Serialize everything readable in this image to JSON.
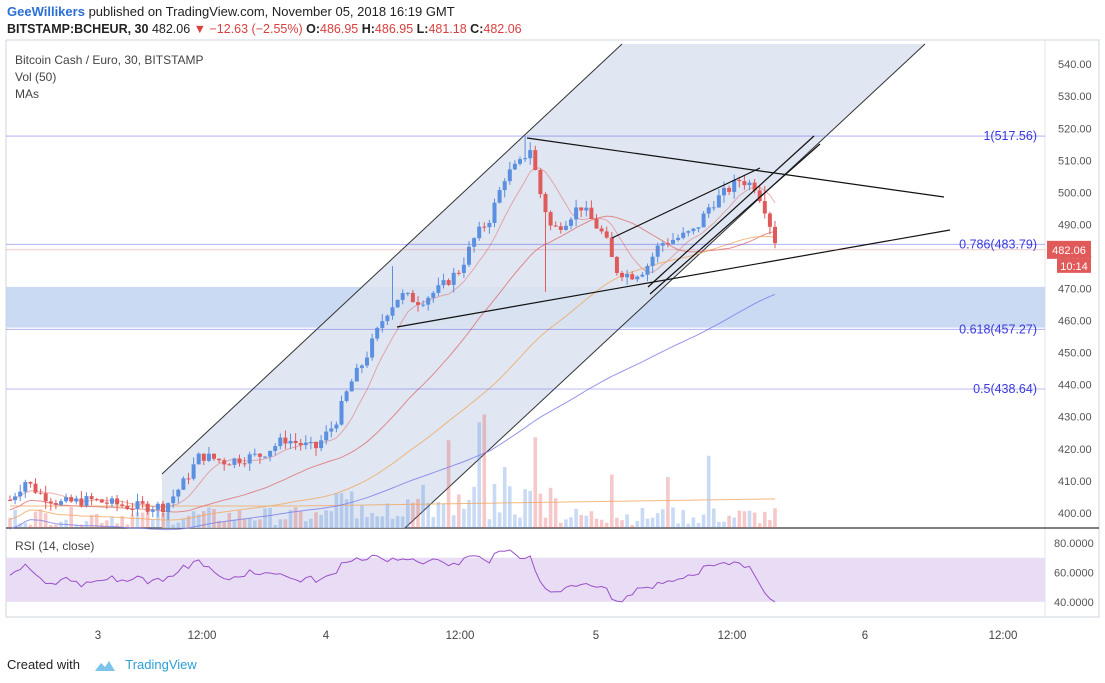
{
  "header": {
    "author": "GeeWillikers",
    "published": "published on TradingView.com, November 05, 2018 16:19 GMT",
    "symbol": "BITSTAMP:BCHEUR, 30",
    "last": "482.06",
    "change": "▼ −12.63 (−2.55%)",
    "o_label": "O:",
    "o": "486.95",
    "h_label": "H:",
    "h": "486.95",
    "l_label": "L:",
    "l": "481.18",
    "c_label": "C:",
    "c": "482.06"
  },
  "legend": {
    "title": "Bitcoin Cash / Euro, 30, BITSTAMP",
    "vol": "Vol (50)",
    "mas": "MAs"
  },
  "rsi": {
    "label": "RSI (14, close)",
    "ticks": [
      "80.0000",
      "60.0000",
      "40.0000"
    ]
  },
  "price_axis": {
    "ticks": [
      540,
      530,
      520,
      510,
      500,
      490,
      480,
      470,
      460,
      450,
      440,
      430,
      420,
      410,
      400
    ]
  },
  "time_axis": {
    "labels": [
      "3",
      "12:00",
      "4",
      "12:00",
      "5",
      "12:00",
      "6",
      "12:00"
    ]
  },
  "last_price_badge": {
    "value": "482.06",
    "countdown": "10:14",
    "color": "#e05a5a"
  },
  "fib_levels": [
    {
      "label": "1(517.56)",
      "price": 517.56
    },
    {
      "label": "0.786(483.79)",
      "price": 483.79
    },
    {
      "label": "0.618(457.27)",
      "price": 457.27
    },
    {
      "label": "0.5(438.64)",
      "price": 438.64
    }
  ],
  "colors": {
    "up": "#5b8fe0",
    "down": "#e05a5a",
    "channel": "#dbe3f0",
    "zone": "#b9cdef",
    "rsi_band": "#e6d9f3",
    "rsi_line": "#9b4fc8",
    "fib": "#3a3adf",
    "ma_red": "#e07070",
    "ma_orange": "#f0a860",
    "ma_purple": "#7a7ae8"
  },
  "chart_data": {
    "type": "candlestick",
    "title": "Bitcoin Cash / Euro, 30, BITSTAMP",
    "ylim": [
      395,
      545
    ],
    "price_samples": [
      {
        "t": "3",
        "price": 402
      },
      {
        "t": "3 12:00",
        "price": 415
      },
      {
        "t": "4",
        "price": 425
      },
      {
        "t": "4 (mid)",
        "price": 462
      },
      {
        "t": "4 12:00",
        "price": 490
      },
      {
        "t": "4 (high)",
        "price": 517
      },
      {
        "t": "5",
        "price": 490
      },
      {
        "t": "5 (low)",
        "price": 472
      },
      {
        "t": "5 12:00",
        "price": 503
      },
      {
        "t": "last",
        "price": 482.06
      }
    ],
    "rsi_ylim": [
      30,
      90
    ]
  },
  "footer": {
    "created": "Created with",
    "brand": "TradingView"
  }
}
